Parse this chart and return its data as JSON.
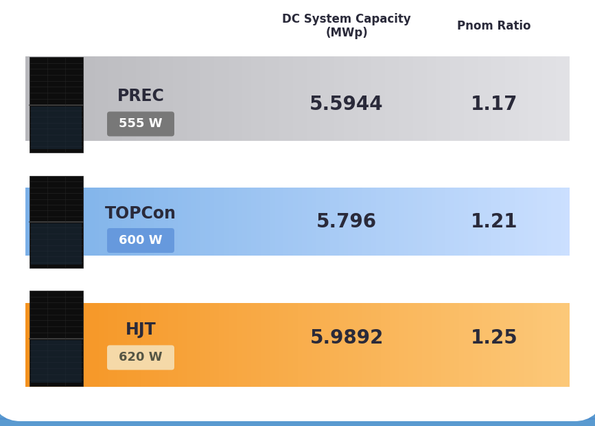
{
  "title_col1": "DC System Capacity\n(MWp)",
  "title_col2": "Pnom Ratio",
  "rows": [
    {
      "name": "PREC",
      "wattage": "555 W",
      "dc_capacity": "5.5944",
      "pnom_ratio": "1.17",
      "bg_color_left": "#b8b8bc",
      "bg_color_right": "#e2e2e6",
      "badge_color": "#787878",
      "badge_text_color": "#ffffff",
      "text_color": "#2a2a3a"
    },
    {
      "name": "TOPCon",
      "wattage": "600 W",
      "dc_capacity": "5.796",
      "pnom_ratio": "1.21",
      "bg_color_left": "#7ab0e8",
      "bg_color_right": "#cce0ff",
      "badge_color": "#6699dd",
      "badge_text_color": "#ffffff",
      "text_color": "#2a2a3a"
    },
    {
      "name": "HJT",
      "wattage": "620 W",
      "dc_capacity": "5.9892",
      "pnom_ratio": "1.25",
      "bg_color_left": "#f5921e",
      "bg_color_right": "#fcc97a",
      "badge_color": "#f5d9a8",
      "badge_text_color": "#555544",
      "text_color": "#2a2a3a"
    }
  ],
  "bg_color": "#ffffff",
  "header_text_color": "#2a2a3a",
  "header_fontsize": 12,
  "name_fontsize": 17,
  "value_fontsize": 20,
  "badge_fontsize": 13,
  "roof_bg_color": "#4a88cc",
  "roof_tile_color": "#3a78bc",
  "bottom_strip_color": "#5a9ad0"
}
